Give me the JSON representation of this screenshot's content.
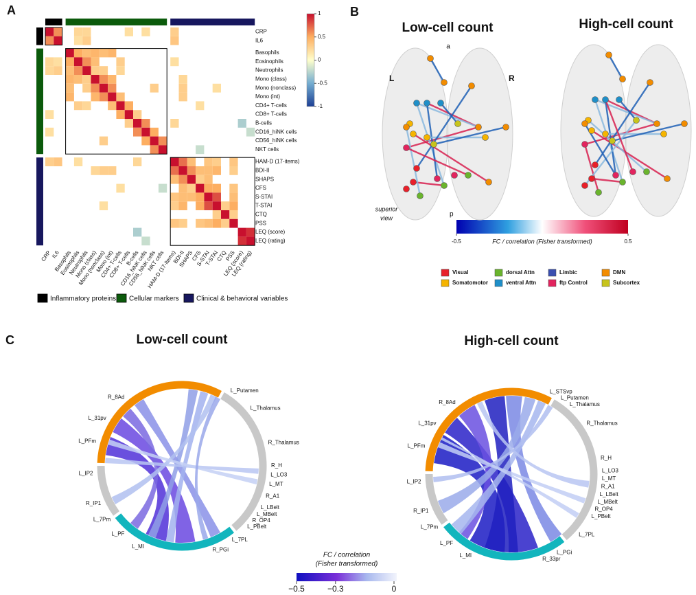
{
  "panel_a": {
    "label": "A",
    "groups": [
      {
        "name": "Inflammatory proteins",
        "color": "#000000",
        "variables": [
          "CRP",
          "IL6"
        ]
      },
      {
        "name": "Cellular markers",
        "color": "#0b5a0b",
        "variables": [
          "Basophils",
          "Eosinophils",
          "Neutrophils",
          "Mono (class)",
          "Mono (nonclass)",
          "Mono (int)",
          "CD4+ T-cells",
          "CD8+ T-cells",
          "B-cells",
          "CD16_hiNK cells",
          "CD56_hiNK cells",
          "NKT cells"
        ]
      },
      {
        "name": "Clinical & behavioral variables",
        "color": "#17175e",
        "variables": [
          "HAM-D (17-items)",
          "BDI-II",
          "SHAPS",
          "CFS",
          "S-STAI",
          "T-STAI",
          "CTQ",
          "PSS",
          "LEQ (score)",
          "LEQ (rating)"
        ]
      }
    ],
    "matrix": [
      [
        1,
        0.6,
        null,
        0.25,
        0.25,
        null,
        null,
        null,
        null,
        0.2,
        null,
        0.2,
        null,
        null,
        0.3,
        null,
        null,
        null,
        null,
        null,
        null,
        null,
        null,
        null
      ],
      [
        0.6,
        1,
        null,
        0.2,
        0.3,
        null,
        null,
        null,
        null,
        null,
        null,
        null,
        null,
        null,
        0.35,
        null,
        null,
        null,
        null,
        null,
        null,
        null,
        null,
        null
      ],
      [
        null,
        null,
        1,
        0.5,
        0.4,
        0.45,
        0.4,
        0.45,
        null,
        null,
        null,
        null,
        null,
        null,
        null,
        null,
        null,
        null,
        null,
        null,
        null,
        null,
        null,
        null
      ],
      [
        0.25,
        0.2,
        0.5,
        1,
        0.6,
        0.4,
        null,
        null,
        0.3,
        null,
        null,
        null,
        null,
        null,
        0.2,
        null,
        null,
        null,
        null,
        null,
        null,
        null,
        null,
        null
      ],
      [
        0.25,
        0.3,
        0.4,
        0.6,
        1,
        0.3,
        0.3,
        null,
        0.25,
        null,
        null,
        null,
        null,
        null,
        null,
        null,
        null,
        null,
        null,
        null,
        null,
        null,
        null,
        null
      ],
      [
        null,
        null,
        0.45,
        0.4,
        0.3,
        1,
        0.6,
        0.45,
        null,
        null,
        null,
        null,
        null,
        null,
        null,
        0.25,
        null,
        null,
        null,
        null,
        null,
        null,
        null,
        null
      ],
      [
        null,
        null,
        0.4,
        null,
        0.3,
        0.6,
        1,
        0.6,
        null,
        null,
        null,
        null,
        0.3,
        null,
        null,
        0.3,
        null,
        null,
        null,
        0.2,
        null,
        null,
        null,
        null
      ],
      [
        null,
        null,
        0.45,
        null,
        null,
        0.45,
        0.6,
        1,
        0.4,
        null,
        null,
        null,
        null,
        null,
        null,
        0.3,
        null,
        null,
        null,
        null,
        null,
        null,
        null,
        null
      ],
      [
        null,
        null,
        null,
        0.3,
        0.25,
        null,
        null,
        0.4,
        1,
        0.5,
        null,
        null,
        null,
        null,
        null,
        null,
        null,
        0.2,
        null,
        null,
        null,
        null,
        null,
        null
      ],
      [
        0.2,
        null,
        null,
        null,
        null,
        null,
        null,
        null,
        0.5,
        1,
        0.3,
        null,
        null,
        null,
        null,
        null,
        null,
        null,
        null,
        null,
        null,
        null,
        null,
        null
      ],
      [
        null,
        null,
        null,
        null,
        null,
        null,
        null,
        null,
        null,
        0.3,
        1,
        0.6,
        null,
        null,
        0.25,
        null,
        null,
        null,
        null,
        null,
        null,
        null,
        -0.3,
        null
      ],
      [
        0.2,
        null,
        null,
        null,
        null,
        null,
        null,
        null,
        null,
        null,
        0.6,
        1,
        0.5,
        null,
        null,
        null,
        null,
        null,
        null,
        null,
        null,
        null,
        null,
        -0.2
      ],
      [
        null,
        null,
        null,
        null,
        null,
        null,
        0.3,
        null,
        null,
        null,
        null,
        0.5,
        1,
        0.6,
        null,
        null,
        null,
        null,
        null,
        null,
        null,
        null,
        null,
        null
      ],
      [
        null,
        null,
        null,
        null,
        null,
        null,
        null,
        null,
        null,
        null,
        null,
        null,
        0.6,
        1,
        null,
        null,
        null,
        -0.2,
        null,
        null,
        null,
        null,
        null,
        null
      ],
      [
        0.3,
        0.35,
        null,
        0.2,
        null,
        null,
        null,
        null,
        null,
        null,
        0.25,
        null,
        null,
        null,
        1,
        0.7,
        0.4,
        null,
        0.35,
        0.3,
        null,
        0.35,
        null,
        null
      ],
      [
        null,
        null,
        null,
        null,
        null,
        0.25,
        0.3,
        0.3,
        null,
        null,
        null,
        null,
        null,
        null,
        0.7,
        1,
        0.6,
        0.4,
        0.4,
        0.45,
        null,
        0.3,
        null,
        null
      ],
      [
        null,
        null,
        null,
        null,
        null,
        null,
        null,
        null,
        null,
        null,
        null,
        null,
        null,
        null,
        0.4,
        0.6,
        1,
        0.3,
        0.4,
        null,
        null,
        null,
        null,
        null
      ],
      [
        null,
        null,
        null,
        null,
        null,
        null,
        null,
        null,
        0.2,
        null,
        null,
        null,
        null,
        -0.2,
        null,
        0.4,
        0.3,
        1,
        0.5,
        0.5,
        null,
        0.35,
        null,
        null
      ],
      [
        null,
        null,
        null,
        null,
        null,
        null,
        null,
        null,
        null,
        null,
        null,
        null,
        null,
        null,
        0.35,
        0.4,
        0.4,
        0.5,
        1,
        0.8,
        null,
        0.4,
        null,
        null
      ],
      [
        null,
        null,
        null,
        null,
        null,
        null,
        0.2,
        null,
        null,
        null,
        null,
        null,
        null,
        null,
        0.3,
        0.45,
        null,
        0.5,
        0.8,
        1,
        0.3,
        0.5,
        null,
        null
      ],
      [
        null,
        null,
        null,
        null,
        null,
        null,
        null,
        null,
        null,
        null,
        null,
        null,
        null,
        null,
        null,
        null,
        null,
        null,
        null,
        0.3,
        1,
        0.3,
        null,
        null
      ],
      [
        null,
        null,
        null,
        null,
        null,
        null,
        null,
        null,
        null,
        null,
        null,
        null,
        null,
        null,
        0.35,
        0.3,
        null,
        0.35,
        0.4,
        0.5,
        0.3,
        1,
        null,
        null
      ],
      [
        null,
        null,
        null,
        null,
        null,
        null,
        null,
        null,
        null,
        null,
        -0.3,
        null,
        null,
        null,
        null,
        null,
        null,
        null,
        null,
        null,
        null,
        null,
        1,
        0.9
      ],
      [
        null,
        null,
        null,
        null,
        null,
        null,
        null,
        null,
        null,
        null,
        null,
        -0.2,
        null,
        null,
        null,
        null,
        null,
        null,
        null,
        null,
        null,
        null,
        0.9,
        1
      ]
    ],
    "colorbar_ticks": [
      1,
      0.5,
      0,
      -0.5,
      -1
    ]
  },
  "panel_b": {
    "label": "B",
    "titles": [
      "Low-cell count",
      "High-cell count"
    ],
    "orientation": {
      "anterior": "a",
      "left": "L",
      "right": "R",
      "posterior": "p",
      "view": [
        "superior",
        "view"
      ]
    },
    "colorbar": {
      "label": "FC / correlation (Fisher transformed)",
      "ticks": [
        -0.5,
        0.5
      ]
    },
    "networks": [
      {
        "name": "Visual",
        "color": "#e8202a"
      },
      {
        "name": "Somatomotor",
        "color": "#f5b400"
      },
      {
        "name": "dorsal Attn",
        "color": "#6ab42d"
      },
      {
        "name": "ventral Attn",
        "color": "#1f8fc8"
      },
      {
        "name": "Limbic",
        "color": "#3a4fb0"
      },
      {
        "name": "ftp Control",
        "color": "#e2245e"
      },
      {
        "name": "DMN",
        "color": "#f28c00"
      },
      {
        "name": "Subcortex",
        "color": "#c7c41c"
      }
    ]
  },
  "panel_c": {
    "label": "C",
    "diagrams": [
      {
        "title": "Low-cell count",
        "left_labels": [
          "R_8Ad",
          "L_31pv",
          "L_PFm",
          "L_IP2",
          "R_IP1",
          "L_7Pm",
          "L_PF",
          "L_MI"
        ],
        "right_labels": [
          "L_Putamen",
          "L_Thalamus",
          "R_Thalamus",
          "R_H",
          "L_LO3",
          "L_MT",
          "R_A1",
          "L_LBelt",
          "L_MBelt",
          "R_OP4",
          "L_PBelt",
          "L_7PL",
          "R_PGi"
        ]
      },
      {
        "title": "High-cell count",
        "left_labels": [
          "R_8Ad",
          "L_31pv",
          "L_PFm",
          "L_IP2",
          "R_IP1",
          "L_7Pm",
          "L_PF",
          "L_MI"
        ],
        "right_labels": [
          "L_STSvp",
          "L_Putamen",
          "L_Thalamus",
          "R_Thalamus",
          "R_H",
          "L_LO3",
          "L_MT",
          "R_A1",
          "L_LBelt",
          "L_MBelt",
          "R_OP4",
          "L_PBelt",
          "L_7PL",
          "L_PGi",
          "R_33pr"
        ]
      }
    ],
    "colorbar": {
      "label": [
        "FC / correlation",
        "(Fisher transformed)"
      ],
      "ticks": [
        {
          "value": -0.5,
          "label": "−0.5"
        },
        {
          "value": -0.3,
          "label": "−0.3"
        },
        {
          "value": 0,
          "label": "0"
        }
      ]
    }
  }
}
